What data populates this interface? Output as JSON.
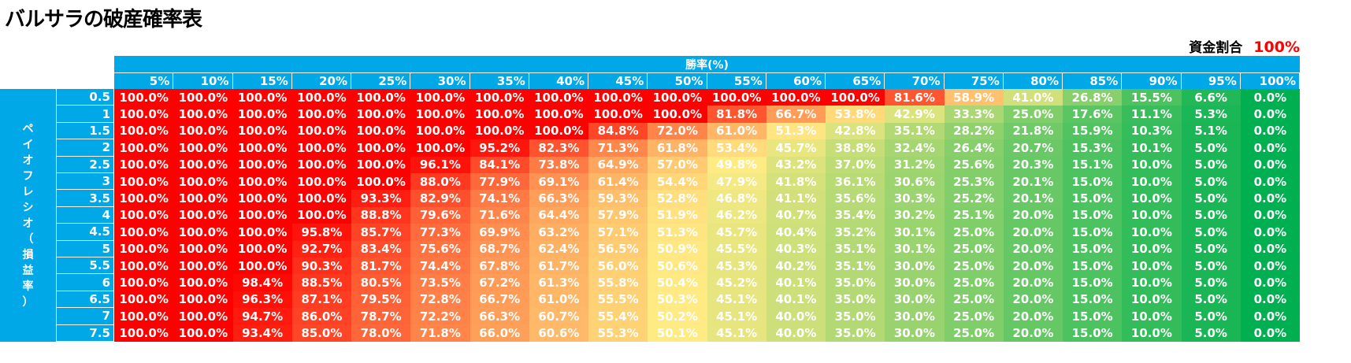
{
  "title": "バルサラの破産確率表",
  "fund": {
    "label": "資金割合",
    "value": "100%"
  },
  "chart_data": {
    "type": "heatmap",
    "title": "バルサラの破産確率表",
    "xlabel": "勝率(%)",
    "ylabel": "ペイオフレシオ（損益率）",
    "x": [
      "5%",
      "10%",
      "15%",
      "20%",
      "25%",
      "30%",
      "35%",
      "40%",
      "45%",
      "50%",
      "55%",
      "60%",
      "65%",
      "70%",
      "75%",
      "80%",
      "85%",
      "90%",
      "95%",
      "100%"
    ],
    "y": [
      "0.5",
      "1",
      "1.5",
      "2",
      "2.5",
      "3",
      "3.5",
      "4",
      "4.5",
      "5",
      "5.5",
      "6",
      "6.5",
      "7",
      "7.5"
    ],
    "values": [
      [
        100,
        100,
        100,
        100,
        100,
        100,
        100,
        100,
        100,
        100,
        100,
        100,
        100,
        81.6,
        58.9,
        41.0,
        26.8,
        15.5,
        6.6,
        0.0
      ],
      [
        100,
        100,
        100,
        100,
        100,
        100,
        100,
        100,
        100,
        100,
        81.8,
        66.7,
        53.8,
        42.9,
        33.3,
        25.0,
        17.6,
        11.1,
        5.3,
        0.0
      ],
      [
        100,
        100,
        100,
        100,
        100,
        100,
        100,
        100,
        84.8,
        72.0,
        61.0,
        51.3,
        42.8,
        35.1,
        28.2,
        21.8,
        15.9,
        10.3,
        5.1,
        0.0
      ],
      [
        100,
        100,
        100,
        100,
        100,
        100,
        95.2,
        82.3,
        71.3,
        61.8,
        53.4,
        45.7,
        38.8,
        32.4,
        26.4,
        20.7,
        15.3,
        10.1,
        5.0,
        0.0
      ],
      [
        100,
        100,
        100,
        100,
        100,
        96.1,
        84.1,
        73.8,
        64.9,
        57.0,
        49.8,
        43.2,
        37.0,
        31.2,
        25.6,
        20.3,
        15.1,
        10.0,
        5.0,
        0.0
      ],
      [
        100,
        100,
        100,
        100,
        100,
        88.0,
        77.9,
        69.1,
        61.4,
        54.4,
        47.9,
        41.8,
        36.1,
        30.6,
        25.3,
        20.1,
        15.0,
        10.0,
        5.0,
        0.0
      ],
      [
        100,
        100,
        100,
        100,
        93.3,
        82.9,
        74.1,
        66.3,
        59.3,
        52.8,
        46.8,
        41.1,
        35.6,
        30.3,
        25.2,
        20.1,
        15.0,
        10.0,
        5.0,
        0.0
      ],
      [
        100,
        100,
        100,
        100,
        88.8,
        79.6,
        71.6,
        64.4,
        57.9,
        51.9,
        46.2,
        40.7,
        35.4,
        30.2,
        25.1,
        20.0,
        15.0,
        10.0,
        5.0,
        0.0
      ],
      [
        100,
        100,
        100,
        95.8,
        85.7,
        77.3,
        69.9,
        63.2,
        57.1,
        51.3,
        45.7,
        40.4,
        35.2,
        30.1,
        25.0,
        20.0,
        15.0,
        10.0,
        5.0,
        0.0
      ],
      [
        100,
        100,
        100,
        92.7,
        83.4,
        75.6,
        68.7,
        62.4,
        56.5,
        50.9,
        45.5,
        40.3,
        35.1,
        30.1,
        25.0,
        20.0,
        15.0,
        10.0,
        5.0,
        0.0
      ],
      [
        100,
        100,
        100,
        90.3,
        81.7,
        74.4,
        67.8,
        61.7,
        56.0,
        50.6,
        45.3,
        40.2,
        35.1,
        30.0,
        25.0,
        20.0,
        15.0,
        10.0,
        5.0,
        0.0
      ],
      [
        100,
        100,
        98.4,
        88.5,
        80.5,
        73.5,
        67.2,
        61.3,
        55.8,
        50.4,
        45.2,
        40.1,
        35.0,
        30.0,
        25.0,
        20.0,
        15.0,
        10.0,
        5.0,
        0.0
      ],
      [
        100,
        100,
        96.3,
        87.1,
        79.5,
        72.8,
        66.7,
        61.0,
        55.5,
        50.3,
        45.1,
        40.1,
        35.0,
        30.0,
        25.0,
        20.0,
        15.0,
        10.0,
        5.0,
        0.0
      ],
      [
        100,
        100,
        94.7,
        86.0,
        78.7,
        72.2,
        66.3,
        60.7,
        55.4,
        50.2,
        45.1,
        40.0,
        35.0,
        30.0,
        25.0,
        20.0,
        15.0,
        10.0,
        5.0,
        0.0
      ],
      [
        100,
        100,
        93.4,
        85.0,
        78.0,
        71.8,
        66.0,
        60.6,
        55.3,
        50.1,
        45.1,
        40.0,
        35.0,
        30.0,
        25.0,
        20.0,
        15.0,
        10.0,
        5.0,
        0.0
      ]
    ],
    "colors": {
      "high": "#ff0000",
      "mid": "#ffeb84",
      "low": "#00b050",
      "header": "#00a8e8"
    }
  }
}
